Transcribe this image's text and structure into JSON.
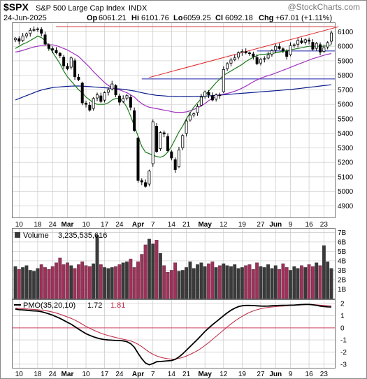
{
  "header": {
    "symbol": "$SPX",
    "name": "S&P 500 Large Cap Index",
    "exchange": "INDX",
    "watermark": "@StockCharts.com",
    "date": "24-Jun-2025",
    "open_label": "Op",
    "open": "6061.21",
    "high_label": "Hi",
    "high": "6101.76",
    "low_label": "Lo",
    "low": "6059.25",
    "close_label": "Cl",
    "close": "6092.18",
    "chg_label": "Chg",
    "chg": "+67.01 (+1.11%)"
  },
  "colors": {
    "up": "#000000",
    "down": "#000000",
    "sma20": "#1a7a1a",
    "sma50": "#a030c0",
    "sma200": "#0a1a8c",
    "trendline": "#e02020",
    "hline": "#1a22aa",
    "vol_up": "#3a3a3a",
    "vol_down": "#a0305a",
    "pmo": "#000000",
    "pmo_signal": "#c0304a",
    "grid": "#c8c8c8"
  },
  "chart_data": [
    {
      "type": "candlestick",
      "name": "price",
      "x_labels": [
        {
          "i": 1,
          "text": "10"
        },
        {
          "i": 6,
          "text": "18"
        },
        {
          "i": 10,
          "text": "24"
        },
        {
          "i": 14,
          "text": "Mar"
        },
        {
          "i": 19,
          "text": "10"
        },
        {
          "i": 24,
          "text": "17"
        },
        {
          "i": 28,
          "text": "24"
        },
        {
          "i": 33,
          "text": "Apr"
        },
        {
          "i": 37,
          "text": "7"
        },
        {
          "i": 42,
          "text": "14"
        },
        {
          "i": 46,
          "text": "21"
        },
        {
          "i": 51,
          "text": "May"
        },
        {
          "i": 56,
          "text": "12"
        },
        {
          "i": 61,
          "text": "19"
        },
        {
          "i": 66,
          "text": "27"
        },
        {
          "i": 70,
          "text": "Jun"
        },
        {
          "i": 74,
          "text": "9"
        },
        {
          "i": 79,
          "text": "16"
        },
        {
          "i": 83,
          "text": "23"
        }
      ],
      "y_ticks": [
        4900,
        5000,
        5100,
        5200,
        5300,
        5400,
        5500,
        5600,
        5700,
        5800,
        5900,
        6000,
        6100
      ],
      "ylim": [
        4820,
        6160
      ],
      "closes": [
        6055,
        6035,
        6070,
        6085,
        6110,
        6115,
        6120,
        6090,
        6015,
        5985,
        5975,
        5955,
        5935,
        5865,
        5845,
        5920,
        5790,
        5770,
        5610,
        5600,
        5560,
        5640,
        5665,
        5620,
        5680,
        5700,
        5740,
        5665,
        5615,
        5640,
        5660,
        5580,
        5420,
        5075,
        5065,
        5035,
        5140,
        5480,
        5275,
        5405,
        5395,
        5280,
        5230,
        5150,
        5285,
        5385,
        5485,
        5525,
        5535,
        5585,
        5650,
        5685,
        5665,
        5630,
        5665,
        5660,
        5840,
        5880,
        5905,
        5920,
        5955,
        5965,
        5955,
        5950,
        5930,
        5880,
        5910,
        5915,
        5940,
        5970,
        6000,
        5985,
        5970,
        5930,
        6005,
        6010,
        6040,
        6025,
        6045,
        6035,
        5980,
        6020,
        5960,
        5990,
        6025,
        6092
      ],
      "sma20": [
        5985,
        6000,
        6015,
        6025,
        6040,
        6055,
        6070,
        6060,
        6040,
        6000,
        5960,
        5920,
        5880,
        5830,
        5790,
        5760,
        5730,
        5700,
        5680,
        5650,
        5630,
        5610,
        5600,
        5600,
        5600,
        5610,
        5630,
        5640,
        5640,
        5620,
        5580,
        5520,
        5450,
        5380,
        5310,
        5270,
        5260,
        5250,
        5240,
        5235,
        5245,
        5270,
        5310,
        5360,
        5410,
        5450,
        5500,
        5540,
        5580,
        5610,
        5640,
        5665,
        5690,
        5720,
        5750,
        5775,
        5800,
        5815,
        5830,
        5845,
        5860,
        5875,
        5895,
        5910,
        5925,
        5935,
        5945,
        5945,
        5948,
        5950,
        5955,
        5960,
        5965,
        5970,
        5975,
        5980,
        5985,
        5990,
        5995,
        6000,
        6000,
        6000,
        6000,
        6000,
        6005,
        6010
      ],
      "sma50": [
        5960,
        5965,
        5972,
        5980,
        5988,
        5995,
        6000,
        6005,
        6008,
        6010,
        6010,
        6005,
        5995,
        5985,
        5975,
        5960,
        5945,
        5930,
        5905,
        5880,
        5855,
        5825,
        5800,
        5775,
        5750,
        5730,
        5715,
        5705,
        5700,
        5690,
        5680,
        5665,
        5650,
        5625,
        5605,
        5590,
        5580,
        5575,
        5570,
        5565,
        5560,
        5556,
        5550,
        5545,
        5545,
        5545,
        5548,
        5555,
        5565,
        5575,
        5590,
        5605,
        5625,
        5640,
        5655,
        5665,
        5670,
        5675,
        5682,
        5690,
        5700,
        5712,
        5725,
        5740,
        5755,
        5768,
        5780,
        5790,
        5798,
        5805,
        5815,
        5825,
        5835,
        5845,
        5855,
        5865,
        5875,
        5885,
        5895,
        5905,
        5915,
        5922,
        5930,
        5938,
        5945,
        5950
      ],
      "sma200": [
        5630,
        5640,
        5650,
        5660,
        5670,
        5680,
        5690,
        5698,
        5705,
        5710,
        5715,
        5718,
        5720,
        5722,
        5724,
        5725,
        5726,
        5726,
        5725,
        5724,
        5722,
        5720,
        5718,
        5716,
        5714,
        5712,
        5710,
        5708,
        5706,
        5704,
        5700,
        5696,
        5692,
        5686,
        5680,
        5675,
        5670,
        5666,
        5662,
        5660,
        5658,
        5656,
        5655,
        5654,
        5653,
        5652,
        5652,
        5652,
        5653,
        5654,
        5655,
        5656,
        5658,
        5660,
        5662,
        5664,
        5666,
        5668,
        5670,
        5672,
        5674,
        5676,
        5678,
        5680,
        5682,
        5684,
        5686,
        5688,
        5690,
        5692,
        5694,
        5696,
        5698,
        5700,
        5702,
        5705,
        5708,
        5711,
        5714,
        5717,
        5720,
        5723,
        5726,
        5729,
        5732,
        5735
      ],
      "hlines": [
        6135,
        5968,
        5775
      ],
      "trendline": {
        "from": {
          "i": 36,
          "v": 5785
        },
        "to": {
          "i": 86,
          "v": 6135
        }
      }
    },
    {
      "type": "bar",
      "name": "volume",
      "label": "Volume",
      "value_text": "3,235,535,616",
      "y_ticks_text": [
        "1B",
        "2B",
        "3B",
        "4B",
        "5B",
        "6B",
        "7B"
      ],
      "y_ticks": [
        1,
        2,
        3,
        4,
        5,
        6,
        7
      ],
      "ylim": [
        0,
        7.4
      ],
      "values": [
        3.4,
        3.1,
        3.3,
        3.5,
        3.0,
        2.9,
        3.2,
        3.6,
        3.3,
        3.1,
        3.4,
        3.8,
        4.3,
        3.6,
        3.8,
        3.5,
        3.2,
        3.6,
        3.9,
        3.5,
        3.4,
        3.7,
        6.7,
        3.6,
        3.3,
        3.2,
        3.3,
        3.4,
        3.6,
        3.8,
        3.9,
        4.2,
        3.3,
        3.9,
        4.7,
        5.7,
        6.3,
        5.8,
        6.2,
        4.8,
        3.5,
        2.8,
        3.0,
        3.8,
        2.9,
        3.0,
        3.3,
        3.9,
        3.2,
        3.6,
        3.8,
        3.4,
        3.7,
        3.9,
        3.3,
        3.5,
        3.7,
        3.5,
        3.4,
        3.6,
        3.2,
        3.3,
        3.5,
        3.6,
        3.1,
        3.8,
        3.4,
        3.3,
        3.6,
        3.2,
        3.5,
        3.1,
        3.7,
        3.3,
        3.0,
        3.4,
        3.2,
        3.5,
        3.3,
        3.6,
        3.4,
        3.8,
        3.5,
        5.6,
        3.9,
        3.2
      ]
    },
    {
      "type": "line",
      "name": "pmo",
      "label": "PMO(35,20,10)",
      "value_text": "1.72",
      "signal_text": "1.81",
      "y_ticks": [
        -3,
        -2,
        -1,
        0,
        1,
        2
      ],
      "ylim": [
        -3.3,
        2.3
      ],
      "series": [
        {
          "values": [
            1.55,
            1.5,
            1.48,
            1.45,
            1.42,
            1.4,
            1.38,
            1.33,
            1.25,
            1.15,
            1.05,
            0.92,
            0.78,
            0.62,
            0.46,
            0.3,
            0.1,
            -0.1,
            -0.3,
            -0.48,
            -0.62,
            -0.74,
            -0.84,
            -0.92,
            -0.97,
            -1.0,
            -1.02,
            -1.04,
            -1.05,
            -1.08,
            -1.14,
            -1.3,
            -1.6,
            -2.1,
            -2.55,
            -2.9,
            -3.05,
            -2.95,
            -2.8,
            -2.78,
            -2.75,
            -2.72,
            -2.7,
            -2.6,
            -2.4,
            -2.15,
            -1.85,
            -1.55,
            -1.25,
            -0.95,
            -0.62,
            -0.3,
            -0.02,
            0.25,
            0.5,
            0.75,
            1.0,
            1.24,
            1.45,
            1.62,
            1.75,
            1.82,
            1.85,
            1.85,
            1.84,
            1.82,
            1.8,
            1.79,
            1.8,
            1.82,
            1.84,
            1.85,
            1.86,
            1.86,
            1.87,
            1.88,
            1.9,
            1.92,
            1.93,
            1.93,
            1.9,
            1.86,
            1.8,
            1.76,
            1.73,
            1.72
          ]
        },
        {
          "values": [
            1.62,
            1.6,
            1.58,
            1.56,
            1.54,
            1.52,
            1.5,
            1.46,
            1.42,
            1.37,
            1.3,
            1.22,
            1.12,
            1.02,
            0.9,
            0.78,
            0.64,
            0.48,
            0.3,
            0.12,
            -0.04,
            -0.18,
            -0.32,
            -0.44,
            -0.55,
            -0.64,
            -0.72,
            -0.8,
            -0.87,
            -0.94,
            -1.0,
            -1.08,
            -1.2,
            -1.36,
            -1.55,
            -1.78,
            -2.0,
            -2.18,
            -2.32,
            -2.42,
            -2.5,
            -2.55,
            -2.58,
            -2.57,
            -2.52,
            -2.44,
            -2.33,
            -2.2,
            -2.05,
            -1.88,
            -1.68,
            -1.46,
            -1.22,
            -0.96,
            -0.7,
            -0.44,
            -0.18,
            0.08,
            0.32,
            0.55,
            0.76,
            0.95,
            1.12,
            1.27,
            1.4,
            1.5,
            1.58,
            1.64,
            1.68,
            1.72,
            1.75,
            1.78,
            1.8,
            1.82,
            1.84,
            1.86,
            1.88,
            1.9,
            1.92,
            1.93,
            1.92,
            1.9,
            1.87,
            1.85,
            1.83,
            1.81
          ]
        }
      ],
      "hline_color": "#d04060"
    }
  ]
}
